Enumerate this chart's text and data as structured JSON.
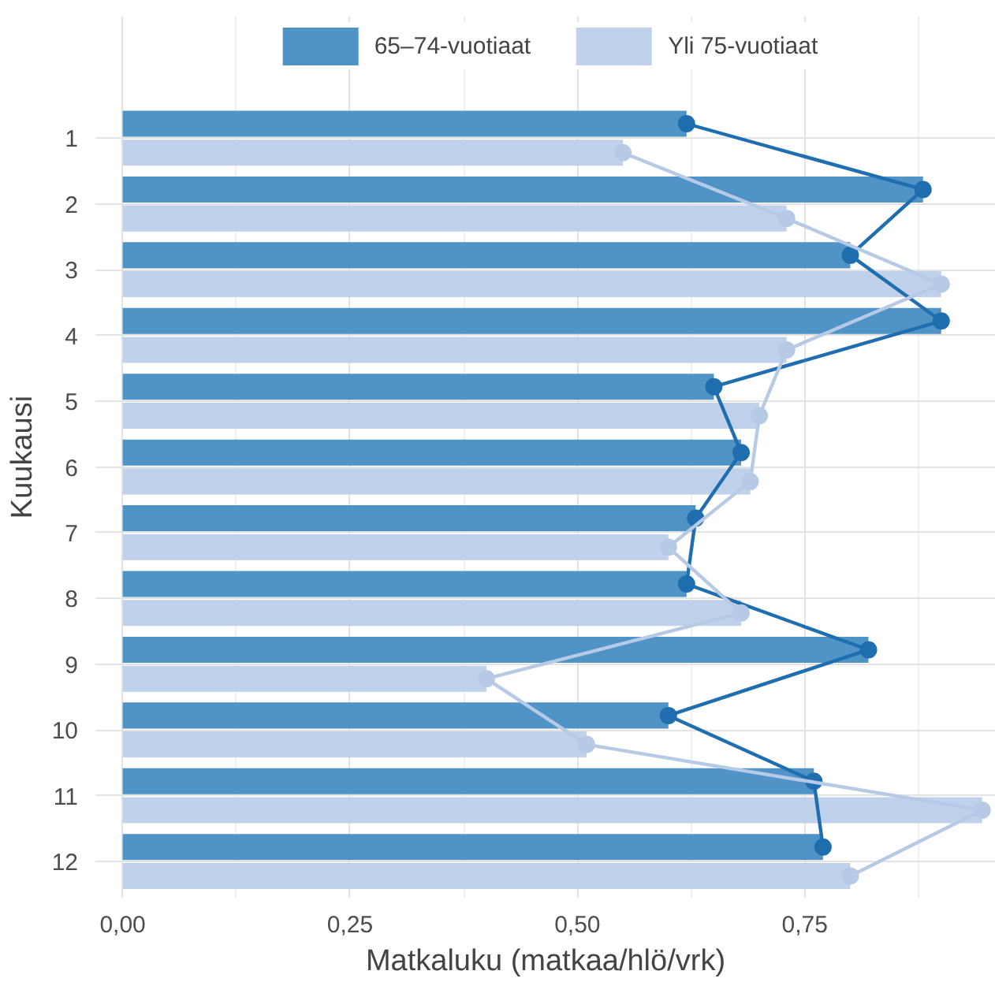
{
  "chart_data": {
    "type": "bar",
    "orientation": "horizontal",
    "xlabel": "Matkaluku (matkaa/hlö/vrk)",
    "ylabel": "Kuukausi",
    "categories": [
      "1",
      "2",
      "3",
      "4",
      "5",
      "6",
      "7",
      "8",
      "9",
      "10",
      "11",
      "12"
    ],
    "series": [
      {
        "name": "65–74-vuotiaat",
        "color": "#4a8fc4",
        "values": [
          0.62,
          0.88,
          0.8,
          0.9,
          0.65,
          0.68,
          0.63,
          0.62,
          0.82,
          0.6,
          0.76,
          0.77
        ]
      },
      {
        "name": "Yli 75-vuotiaat",
        "color": "#bdd0ea",
        "values": [
          0.55,
          0.73,
          0.9,
          0.73,
          0.7,
          0.69,
          0.6,
          0.68,
          0.4,
          0.51,
          0.945,
          0.8
        ]
      },
      {
        "type": "line",
        "color": "#1f6eb0",
        "values": [
          0.62,
          0.88,
          0.8,
          0.9,
          0.65,
          0.68,
          0.63,
          0.62,
          0.82,
          0.6,
          0.76,
          0.77
        ]
      },
      {
        "type": "line",
        "color": "#b6cae6",
        "values": [
          0.55,
          0.73,
          0.9,
          0.73,
          0.7,
          0.69,
          0.6,
          0.68,
          0.4,
          0.51,
          0.945,
          0.8
        ]
      }
    ],
    "marker": "circle",
    "xlim": [
      -0.03,
      0.96
    ],
    "xticks": [
      {
        "value": 0,
        "label": "0,00"
      },
      {
        "value": 0.25,
        "label": "0,25"
      },
      {
        "value": 0.5,
        "label": "0,50"
      },
      {
        "value": 0.75,
        "label": "0,75"
      }
    ],
    "grid": true,
    "legend": "top"
  }
}
